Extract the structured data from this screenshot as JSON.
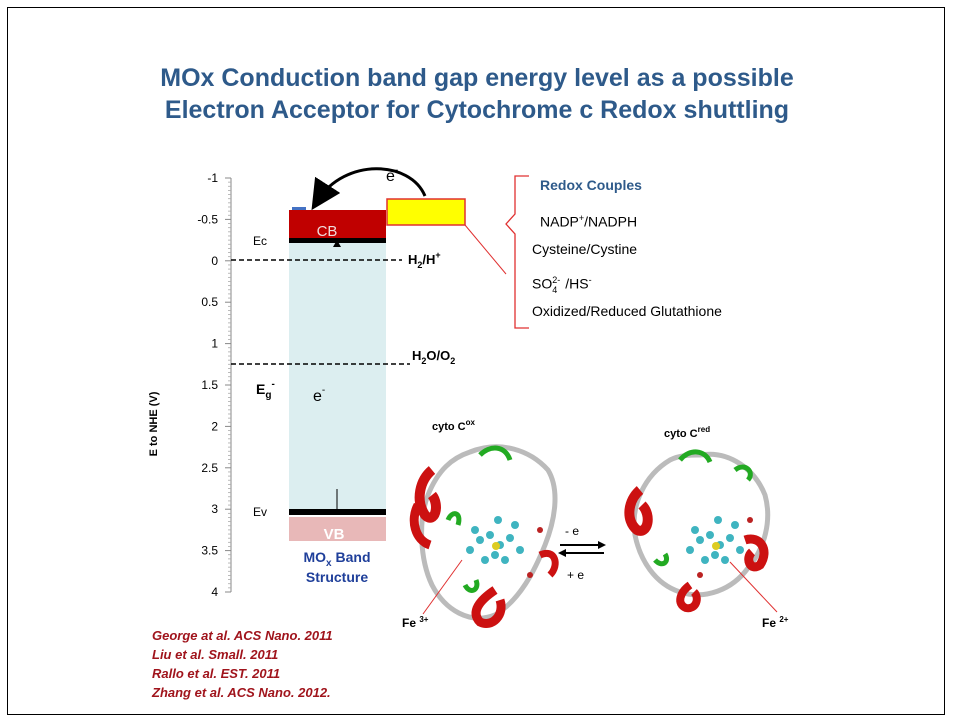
{
  "title": {
    "line1": "MOx Conduction band gap energy level as a possible",
    "line2": "Electron Acceptor for Cytochrome c Redox shuttling"
  },
  "axis": {
    "label": "E to NHE (V)",
    "ticks": [
      "-1",
      "-0.5",
      "0",
      "0.5",
      "1",
      "1.5",
      "2",
      "2.5",
      "3",
      "3.5",
      "4"
    ]
  },
  "band": {
    "ec": "Ec",
    "ev": "Ev",
    "cb": "CB",
    "vb": "VB",
    "eg": "E",
    "eg_sub": "g",
    "eg_sup": "-",
    "electron_gap": "e",
    "electron_gap_sup": "-",
    "electron_top": "e",
    "electron_top_sup": "-",
    "structure_line1_a": "MO",
    "structure_line1_sub": "x",
    "structure_line1_b": " Band",
    "structure_line2": "Structure"
  },
  "levels": {
    "h2": "H",
    "h2_sub": "2",
    "h2_rest": "/H",
    "h2_sup": "+",
    "h2o": "H",
    "h2o_sub": "2",
    "h2o_mid": "O/O",
    "h2o_sub2": "2"
  },
  "redox": {
    "header": "Redox Couples",
    "nadp_a": "NADP",
    "nadp_sup": "+",
    "nadp_b": "/NADPH",
    "cysteine": "Cysteine/Cystine",
    "so4_a": "SO",
    "so4_sub": "4",
    "so4_sup": "2-",
    "so4_b": "/HS",
    "so4_sup2": "-",
    "glutathione": "Oxidized/Reduced Glutathione"
  },
  "cyto": {
    "ox_label": "cyto C",
    "ox_sup": "ox",
    "red_label": "cyto C",
    "red_sup": "red",
    "minus_e": "- e",
    "plus_e": "+ e",
    "fe3": "Fe ",
    "fe3_sup": "3+",
    "fe2": "Fe ",
    "fe2_sup": "2+"
  },
  "references": [
    "George at al. ACS Nano. 2011",
    "Liu et al. Small. 2011",
    "Rallo et al. EST. 2011",
    "Zhang et al. ACS Nano. 2012."
  ],
  "colors": {
    "title": "#2e5a8a",
    "cb": "#c00000",
    "vb": "#e8b8b8",
    "gap": "#dceef0",
    "yellow": "#ffff00",
    "reference": "#a0141c",
    "structure": "#1f3f9a"
  }
}
